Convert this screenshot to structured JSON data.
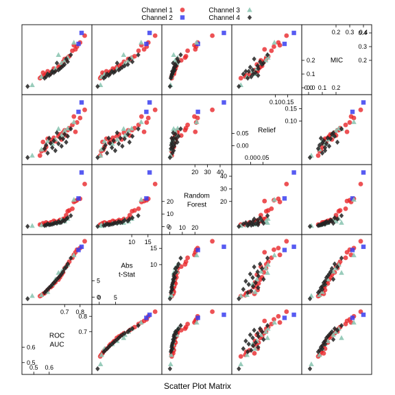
{
  "chart_data": {
    "type": "scatter",
    "title": "",
    "xlabel": "Scatter Plot Matrix",
    "legend": {
      "placement": "top",
      "entries": [
        {
          "name": "Channel 1",
          "marker": "circle",
          "color": "#e8272b"
        },
        {
          "name": "Channel 2",
          "marker": "square",
          "color": "#3a3ef0"
        },
        {
          "name": "Channel 3",
          "marker": "triangle",
          "color": "#8ec7b4"
        },
        {
          "name": "Channel 4",
          "marker": "diamond",
          "color": "#222222"
        }
      ]
    },
    "variables": [
      {
        "name": "ROC AUC",
        "lines": [
          "ROC",
          "AUC"
        ],
        "range": [
          0.45,
          0.85
        ],
        "ticks_low": [
          "0.5",
          "0.6"
        ],
        "ticks_high": [
          "0.7",
          "0.8"
        ],
        "ticks_low_values": [
          0.5,
          0.6
        ],
        "ticks_high_values": [
          0.7,
          0.8
        ]
      },
      {
        "name": "Abs t-Stat",
        "lines": [
          "Abs",
          "t-Stat"
        ],
        "range": [
          -1,
          18
        ],
        "ticks_low": [
          "0",
          "5"
        ],
        "ticks_high": [
          "10",
          "15"
        ],
        "ticks_low_values": [
          0,
          5
        ],
        "ticks_high_values": [
          10,
          15
        ]
      },
      {
        "name": "Random Forest",
        "lines": [
          "Random",
          "Forest"
        ],
        "range": [
          -3,
          46
        ],
        "ticks_low": [
          "0",
          "10",
          "20"
        ],
        "ticks_high": [
          "20",
          "30",
          "40"
        ],
        "ticks_low_values": [
          0,
          10,
          20
        ],
        "ticks_high_values": [
          20,
          30,
          40
        ]
      },
      {
        "name": "Relief",
        "lines": [
          "Relief"
        ],
        "range": [
          -0.06,
          0.19
        ],
        "ticks_low": [
          "0.00",
          "0.05"
        ],
        "ticks_high": [
          "0.10",
          "0.15"
        ],
        "ticks_low_values": [
          0.0,
          0.05
        ],
        "ticks_high_values": [
          0.1,
          0.15
        ]
      },
      {
        "name": "MIC",
        "lines": [
          "MIC"
        ],
        "range": [
          -0.02,
          0.43
        ],
        "ticks_low": [
          "0.0",
          "0.1",
          "0.2"
        ],
        "ticks_high": [
          "0.2",
          "0.3",
          "0.4"
        ],
        "ticks_low_values": [
          0.0,
          0.1,
          0.2
        ],
        "ticks_high_values": [
          0.2,
          0.3,
          0.4
        ]
      }
    ],
    "series": [
      {
        "name": "Channel 1",
        "points": [
          [
            0.83,
            17.2,
            33.8,
            0.145,
            0.38
          ],
          [
            0.8,
            15.1,
            22.1,
            0.112,
            0.33
          ],
          [
            0.78,
            14.6,
            21.0,
            0.094,
            0.3
          ],
          [
            0.77,
            13.8,
            20.3,
            0.056,
            0.28
          ],
          [
            0.76,
            13.0,
            19.6,
            0.118,
            0.31
          ],
          [
            0.75,
            12.1,
            14.2,
            0.084,
            0.27
          ],
          [
            0.73,
            10.9,
            12.9,
            0.071,
            0.23
          ],
          [
            0.72,
            10.1,
            12.2,
            0.063,
            0.22
          ],
          [
            0.71,
            9.4,
            9.1,
            0.041,
            0.2
          ],
          [
            0.7,
            8.9,
            6.4,
            0.062,
            0.21
          ],
          [
            0.69,
            7.6,
            6.1,
            0.053,
            0.19
          ],
          [
            0.68,
            6.9,
            4.8,
            0.025,
            0.17
          ],
          [
            0.67,
            6.1,
            5.3,
            0.046,
            0.16
          ],
          [
            0.66,
            5.4,
            4.2,
            0.038,
            0.15
          ],
          [
            0.64,
            4.6,
            3.9,
            0.018,
            0.13
          ],
          [
            0.63,
            4.2,
            4.6,
            0.032,
            0.14
          ],
          [
            0.62,
            3.5,
            3.6,
            0.022,
            0.12
          ],
          [
            0.61,
            3.1,
            3.4,
            0.012,
            0.11
          ],
          [
            0.59,
            2.2,
            2.6,
            0.028,
            0.12
          ],
          [
            0.58,
            1.6,
            3.3,
            -0.005,
            0.1
          ],
          [
            0.57,
            1.2,
            1.9,
            -0.018,
            0.09
          ],
          [
            0.56,
            1.0,
            2.7,
            0.015,
            0.11
          ],
          [
            0.55,
            0.6,
            1.4,
            -0.022,
            0.08
          ],
          [
            0.54,
            0.3,
            1.6,
            -0.04,
            0.07
          ]
        ]
      },
      {
        "name": "Channel 2",
        "points": [
          [
            0.81,
            15.5,
            43.0,
            0.175,
            0.4
          ],
          [
            0.79,
            14.5,
            22.4,
            0.137,
            0.32
          ]
        ]
      },
      {
        "name": "Channel 3",
        "points": [
          [
            0.76,
            12.9,
            21.4,
            0.096,
            0.33
          ],
          [
            0.72,
            10.0,
            6.3,
            0.07,
            0.22
          ],
          [
            0.7,
            9.0,
            4.3,
            0.061,
            0.2
          ],
          [
            0.68,
            7.9,
            5.6,
            0.042,
            0.18
          ],
          [
            0.66,
            7.5,
            3.1,
            0.068,
            0.24
          ],
          [
            0.64,
            5.5,
            3.0,
            0.025,
            0.14
          ],
          [
            0.62,
            4.0,
            2.6,
            0.008,
            0.12
          ],
          [
            0.59,
            1.6,
            1.8,
            0.018,
            0.1
          ],
          [
            0.55,
            0.7,
            1.2,
            -0.015,
            0.08
          ],
          [
            0.49,
            0.4,
            0.7,
            -0.04,
            0.02
          ]
        ]
      },
      {
        "name": "Channel 4",
        "points": [
          [
            0.74,
            12.0,
            8.7,
            0.068,
            0.24
          ],
          [
            0.72,
            10.2,
            7.0,
            0.038,
            0.19
          ],
          [
            0.71,
            9.3,
            6.0,
            0.014,
            0.21
          ],
          [
            0.7,
            8.8,
            4.5,
            0.046,
            0.17
          ],
          [
            0.69,
            7.8,
            5.1,
            0.028,
            0.16
          ],
          [
            0.68,
            7.1,
            3.5,
            -0.002,
            0.15
          ],
          [
            0.67,
            6.5,
            3.2,
            0.031,
            0.14
          ],
          [
            0.66,
            6.0,
            4.0,
            0.008,
            0.13
          ],
          [
            0.65,
            5.5,
            2.7,
            0.052,
            0.18
          ],
          [
            0.64,
            4.9,
            3.1,
            -0.02,
            0.12
          ],
          [
            0.63,
            4.4,
            2.4,
            0.02,
            0.11
          ],
          [
            0.62,
            3.9,
            2.0,
            -0.008,
            0.12
          ],
          [
            0.61,
            3.3,
            1.7,
            0.01,
            0.1
          ],
          [
            0.6,
            2.9,
            1.5,
            0.03,
            0.09
          ],
          [
            0.59,
            2.4,
            2.1,
            -0.03,
            0.1
          ],
          [
            0.58,
            1.9,
            1.2,
            0.002,
            0.08
          ],
          [
            0.57,
            1.4,
            0.9,
            -0.012,
            0.07
          ],
          [
            0.46,
            -0.5,
            0.2,
            -0.048,
            0.01
          ]
        ]
      }
    ]
  }
}
